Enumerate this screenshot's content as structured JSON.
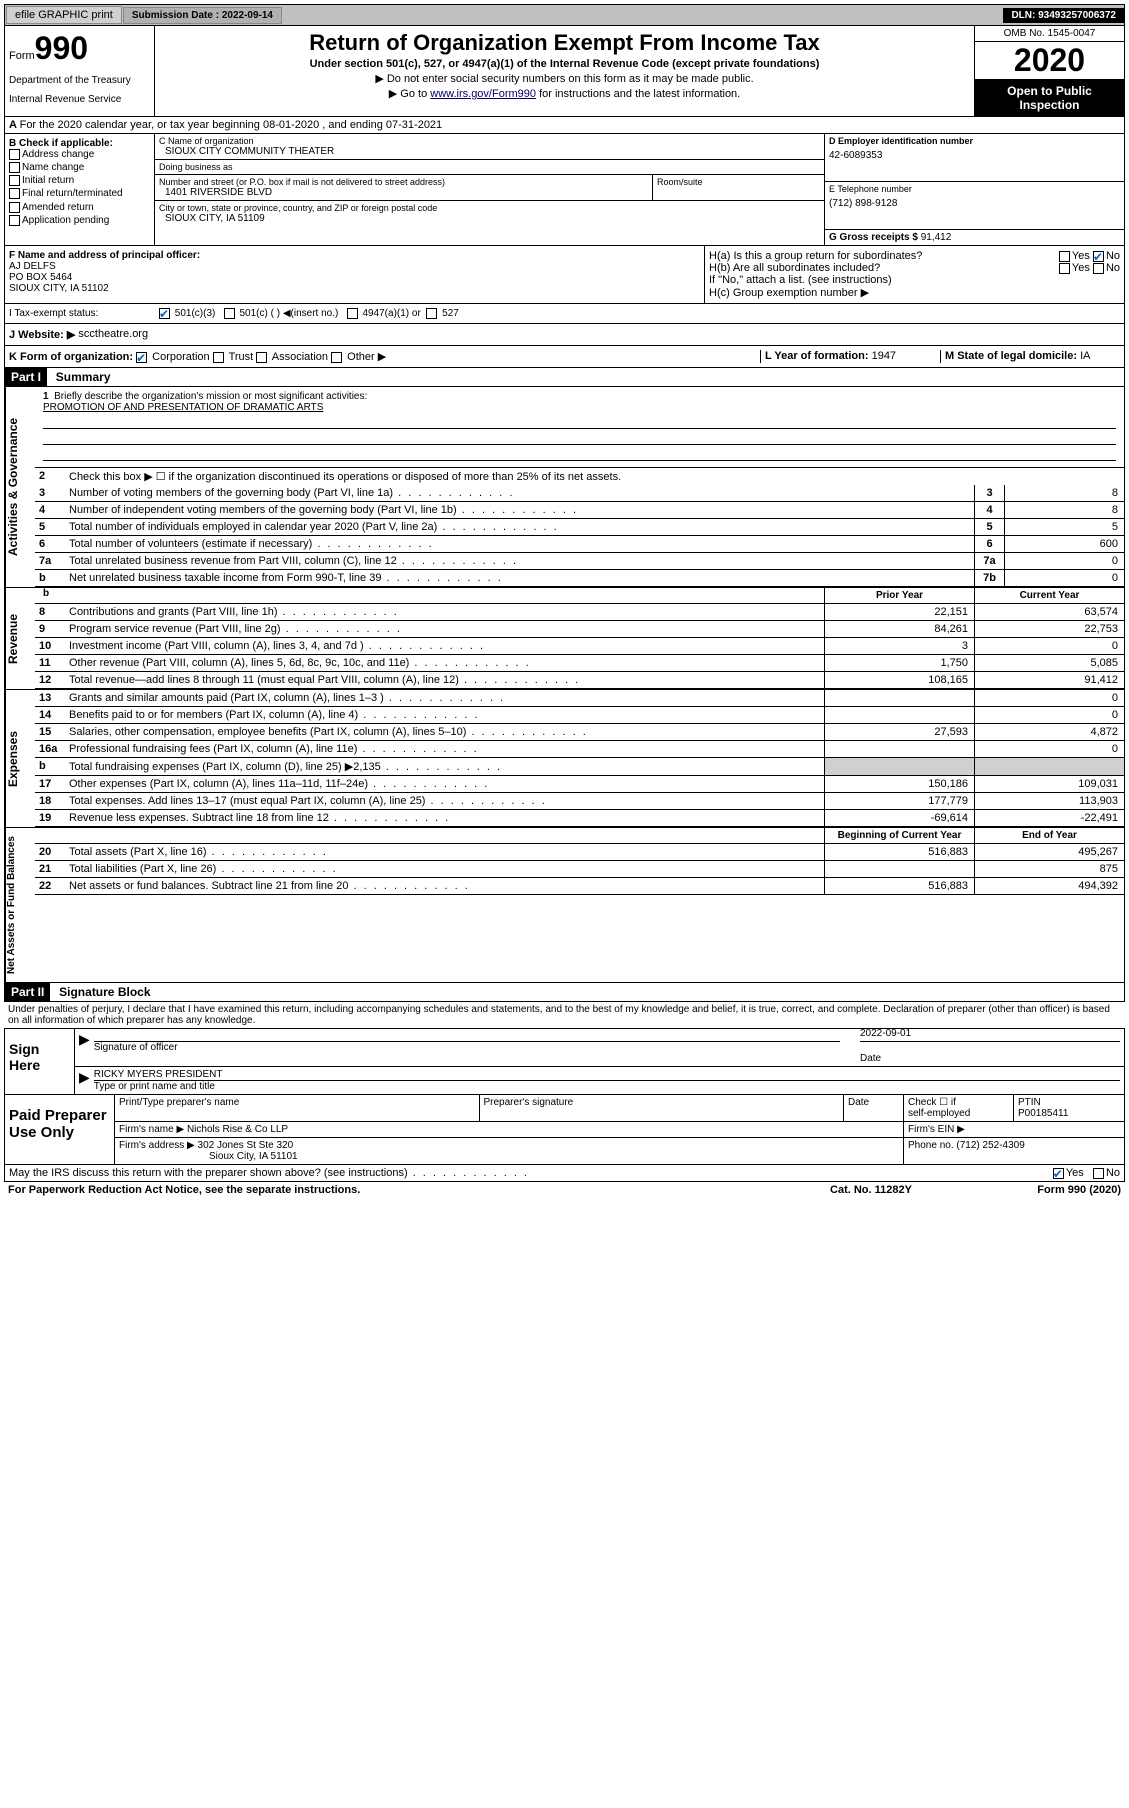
{
  "topbar": {
    "efile": "efile GRAPHIC print",
    "submission_label": "Submission Date :",
    "submission_date": "2022-09-14",
    "dln_label": "DLN:",
    "dln": "93493257006372"
  },
  "header": {
    "form_word": "Form",
    "form_num": "990",
    "dept1": "Department of the Treasury",
    "dept2": "Internal Revenue Service",
    "title": "Return of Organization Exempt From Income Tax",
    "sub1": "Under section 501(c), 527, or 4947(a)(1) of the Internal Revenue Code (except private foundations)",
    "sub2": "▶ Do not enter social security numbers on this form as it may be made public.",
    "sub3_pre": "▶ Go to ",
    "sub3_link": "www.irs.gov/Form990",
    "sub3_post": " for instructions and the latest information.",
    "omb": "OMB No. 1545-0047",
    "year": "2020",
    "inspection1": "Open to Public",
    "inspection2": "Inspection"
  },
  "line_a": "For the 2020 calendar year, or tax year beginning 08-01-2020   , and ending 07-31-2021",
  "box_b": {
    "title": "B Check if applicable:",
    "items": [
      "Address change",
      "Name change",
      "Initial return",
      "Final return/terminated",
      "Amended return",
      "Application pending"
    ]
  },
  "box_c": {
    "name_label": "C Name of organization",
    "name": "SIOUX CITY COMMUNITY THEATER",
    "dba_label": "Doing business as",
    "dba": "",
    "addr_label": "Number and street (or P.O. box if mail is not delivered to street address)",
    "addr": "1401 RIVERSIDE BLVD",
    "room_label": "Room/suite",
    "city_label": "City or town, state or province, country, and ZIP or foreign postal code",
    "city": "SIOUX CITY, IA  51109"
  },
  "box_d": {
    "ein_label": "D Employer identification number",
    "ein": "42-6089353",
    "phone_label": "E Telephone number",
    "phone": "(712) 898-9128",
    "gross_label": "G Gross receipts $",
    "gross": "91,412"
  },
  "box_f": {
    "label": "F  Name and address of principal officer:",
    "line1": "AJ DELFS",
    "line2": "PO BOX 5464",
    "line3": "SIOUX CITY, IA  51102"
  },
  "box_h": {
    "ha": "H(a)  Is this a group return for subordinates?",
    "hb": "H(b)  Are all subordinates included?",
    "hb_note": "If \"No,\" attach a list. (see instructions)",
    "hc": "H(c)  Group exemption number ▶"
  },
  "exempt": {
    "label": "I   Tax-exempt status:",
    "c3": "501(c)(3)",
    "c_other": "501(c) (  ) ◀(insert no.)",
    "a1": "4947(a)(1) or",
    "s527": "527"
  },
  "website": {
    "label": "J   Website: ▶",
    "value": "scctheatre.org"
  },
  "formorg": {
    "k": "K Form of organization:",
    "opts": [
      "Corporation",
      "Trust",
      "Association",
      "Other ▶"
    ],
    "l_label": "L Year of formation:",
    "l_val": "1947",
    "m_label": "M State of legal domicile:",
    "m_val": "IA"
  },
  "part1": {
    "header": "Part I",
    "title": "Summary",
    "sidebar": "Activities & Governance",
    "line1a": "Briefly describe the organization's mission or most significant activities:",
    "line1b": "PROMOTION OF AND PRESENTATION OF DRAMATIC ARTS",
    "line2": "Check this box ▶ ☐  if the organization discontinued its operations or disposed of more than 25% of its net assets.",
    "rows": [
      {
        "n": "3",
        "t": "Number of voting members of the governing body (Part VI, line 1a)",
        "bn": "3",
        "v": "8"
      },
      {
        "n": "4",
        "t": "Number of independent voting members of the governing body (Part VI, line 1b)",
        "bn": "4",
        "v": "8"
      },
      {
        "n": "5",
        "t": "Total number of individuals employed in calendar year 2020 (Part V, line 2a)",
        "bn": "5",
        "v": "5"
      },
      {
        "n": "6",
        "t": "Total number of volunteers (estimate if necessary)",
        "bn": "6",
        "v": "600"
      },
      {
        "n": "7a",
        "t": "Total unrelated business revenue from Part VIII, column (C), line 12",
        "bn": "7a",
        "v": "0"
      },
      {
        "n": "b",
        "t": "Net unrelated business taxable income from Form 990-T, line 39",
        "bn": "7b",
        "v": "0"
      }
    ],
    "prior_label": "Prior Year",
    "current_label": "Current Year"
  },
  "revenue": {
    "sidebar": "Revenue",
    "rows": [
      {
        "n": "8",
        "t": "Contributions and grants (Part VIII, line 1h)",
        "pv": "22,151",
        "cv": "63,574"
      },
      {
        "n": "9",
        "t": "Program service revenue (Part VIII, line 2g)",
        "pv": "84,261",
        "cv": "22,753"
      },
      {
        "n": "10",
        "t": "Investment income (Part VIII, column (A), lines 3, 4, and 7d )",
        "pv": "3",
        "cv": "0"
      },
      {
        "n": "11",
        "t": "Other revenue (Part VIII, column (A), lines 5, 6d, 8c, 9c, 10c, and 11e)",
        "pv": "1,750",
        "cv": "5,085"
      },
      {
        "n": "12",
        "t": "Total revenue—add lines 8 through 11 (must equal Part VIII, column (A), line 12)",
        "pv": "108,165",
        "cv": "91,412"
      }
    ]
  },
  "expenses": {
    "sidebar": "Expenses",
    "rows": [
      {
        "n": "13",
        "t": "Grants and similar amounts paid (Part IX, column (A), lines 1–3 )",
        "pv": "",
        "cv": "0"
      },
      {
        "n": "14",
        "t": "Benefits paid to or for members (Part IX, column (A), line 4)",
        "pv": "",
        "cv": "0"
      },
      {
        "n": "15",
        "t": "Salaries, other compensation, employee benefits (Part IX, column (A), lines 5–10)",
        "pv": "27,593",
        "cv": "4,872"
      },
      {
        "n": "16a",
        "t": "Professional fundraising fees (Part IX, column (A), line 11e)",
        "pv": "",
        "cv": "0"
      },
      {
        "n": "b",
        "t": "Total fundraising expenses (Part IX, column (D), line 25) ▶2,135",
        "pv": "",
        "cv": "",
        "gray": true
      },
      {
        "n": "17",
        "t": "Other expenses (Part IX, column (A), lines 11a–11d, 11f–24e)",
        "pv": "150,186",
        "cv": "109,031"
      },
      {
        "n": "18",
        "t": "Total expenses. Add lines 13–17 (must equal Part IX, column (A), line 25)",
        "pv": "177,779",
        "cv": "113,903"
      },
      {
        "n": "19",
        "t": "Revenue less expenses. Subtract line 18 from line 12",
        "pv": "-69,614",
        "cv": "-22,491"
      }
    ]
  },
  "netassets": {
    "sidebar": "Net Assets or Fund Balances",
    "begin_label": "Beginning of Current Year",
    "end_label": "End of Year",
    "rows": [
      {
        "n": "20",
        "t": "Total assets (Part X, line 16)",
        "pv": "516,883",
        "cv": "495,267"
      },
      {
        "n": "21",
        "t": "Total liabilities (Part X, line 26)",
        "pv": "",
        "cv": "875"
      },
      {
        "n": "22",
        "t": "Net assets or fund balances. Subtract line 21 from line 20",
        "pv": "516,883",
        "cv": "494,392"
      }
    ]
  },
  "part2": {
    "header": "Part II",
    "title": "Signature Block",
    "declare": "Under penalties of perjury, I declare that I have examined this return, including accompanying schedules and statements, and to the best of my knowledge and belief, it is true, correct, and complete. Declaration of preparer (other than officer) is based on all information of which preparer has any knowledge."
  },
  "sign": {
    "left": "Sign Here",
    "officer_sig": "Signature of officer",
    "date_label": "Date",
    "date": "2022-09-01",
    "name": "RICKY MYERS  PRESIDENT",
    "name_label": "Type or print name and title"
  },
  "prep": {
    "left": "Paid Preparer Use Only",
    "h1": "Print/Type preparer's name",
    "h2": "Preparer's signature",
    "h3": "Date",
    "h4a": "Check ☐ if",
    "h4b": "self-employed",
    "h5": "PTIN",
    "ptin": "P00185411",
    "firm_label": "Firm's name      ▶",
    "firm": "Nichols Rise & Co LLP",
    "ein_label": "Firm's EIN ▶",
    "addr_label": "Firm's address ▶",
    "addr1": "302 Jones St Ste 320",
    "addr2": "Sioux City, IA  51101",
    "phone_label": "Phone no.",
    "phone": "(712) 252-4309"
  },
  "footer": {
    "discuss": "May the IRS discuss this return with the preparer shown above? (see instructions)",
    "yes": "Yes",
    "no": "No"
  },
  "bottom": {
    "paperwork": "For Paperwork Reduction Act Notice, see the separate instructions.",
    "catno": "Cat. No. 11282Y",
    "formver": "Form 990 (2020)"
  },
  "colors": {
    "accent": "#0066cc",
    "bg": "#ffffff",
    "border": "#000000",
    "gray_block": "#d0d0d0"
  }
}
